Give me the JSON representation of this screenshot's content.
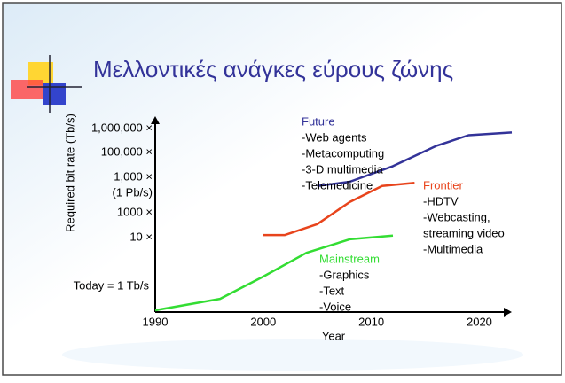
{
  "chart_data": {
    "type": "line",
    "title": "Μελλοντικές ανάγκες εύρους ζώνης",
    "ylabel": "Required bit rate (Tb/s)",
    "xlabel": "Year",
    "xlim": [
      1990,
      2023
    ],
    "xticks": [
      1990,
      2000,
      2010,
      2020
    ],
    "ylim": [
      0.1,
      3000000
    ],
    "log_y": true,
    "y_labels": [
      "1,000,000 ×",
      "100,000 ×",
      "1,000 ×",
      "(1 Pb/s)",
      "1000 ×",
      "10 ×",
      "Today = 1 Tb/s"
    ],
    "series": [
      {
        "name": "Mainstream",
        "color": "#33dd33",
        "items": [
          "-Graphics",
          "-Text",
          "-Voice"
        ],
        "x": [
          1990,
          1996,
          2000,
          2004,
          2008,
          2012
        ],
        "values": [
          0.1,
          0.28,
          2.1,
          18,
          61,
          85
        ]
      },
      {
        "name": "Frontier",
        "color": "#e8441c",
        "items": [
          "-HDTV",
          "-Webcasting,",
          "streaming video",
          "-Multimedia"
        ],
        "x": [
          2000,
          2002,
          2005,
          2008,
          2011,
          2014
        ],
        "values": [
          90,
          90,
          240,
          1770,
          7500,
          10000
        ]
      },
      {
        "name": "Future",
        "color": "#333399",
        "items": [
          "-Web agents",
          "-Metacomputing",
          "-3-D multimedia",
          "-Telemedicine"
        ],
        "x": [
          2005,
          2008,
          2012,
          2016,
          2019,
          2023
        ],
        "values": [
          7500,
          11000,
          45000,
          280000,
          740000,
          950000
        ]
      }
    ]
  }
}
